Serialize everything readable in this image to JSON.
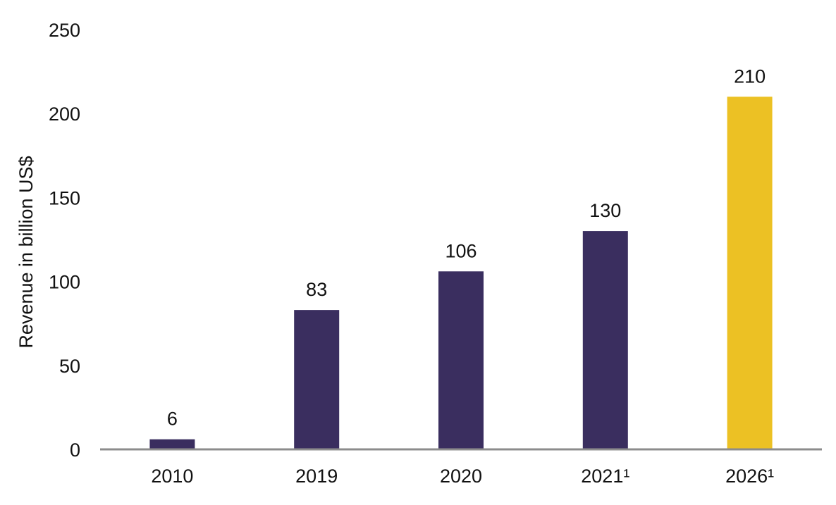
{
  "chart_data": {
    "type": "bar",
    "title": "",
    "xlabel": "",
    "ylabel": "Revenue in billion US$",
    "ylim": [
      0,
      250
    ],
    "yticks": [
      0,
      50,
      100,
      150,
      200,
      250
    ],
    "grid": false,
    "legend": "none",
    "categories": [
      "2010",
      "2019",
      "2020",
      "2021¹",
      "2026¹"
    ],
    "values": [
      6,
      83,
      106,
      130,
      210
    ],
    "data_labels": [
      "6",
      "83",
      "106",
      "130",
      "210"
    ],
    "colors": [
      "#3a2e5f",
      "#3a2e5f",
      "#3a2e5f",
      "#3a2e5f",
      "#ecc124"
    ],
    "axis_color": "#8c8c8c"
  }
}
